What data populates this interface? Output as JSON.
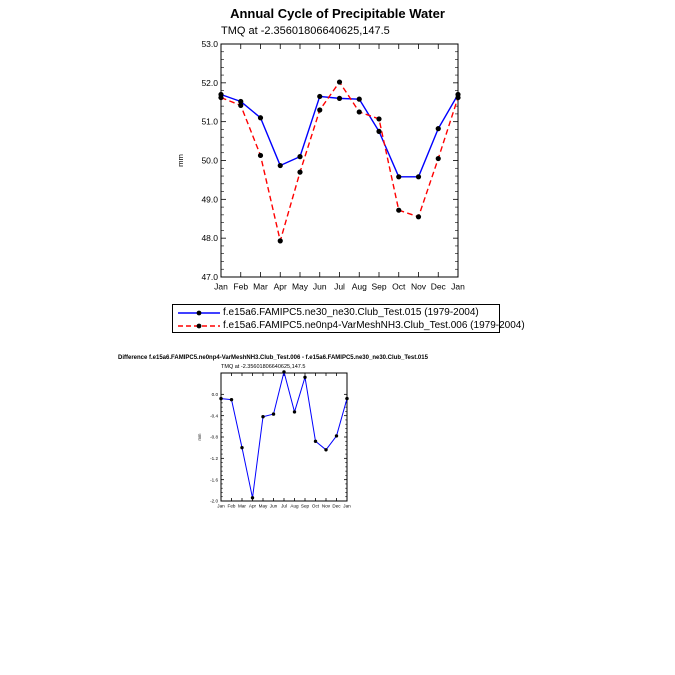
{
  "chart_data": [
    {
      "type": "line",
      "title": "Annual Cycle of Precipitable Water",
      "subtitle": "TMQ at -2.35601806640625,147.5",
      "ylabel": "mm",
      "xlabel": "",
      "categories": [
        "Jan",
        "Feb",
        "Mar",
        "Apr",
        "May",
        "Jun",
        "Jul",
        "Aug",
        "Sep",
        "Oct",
        "Nov",
        "Dec",
        "Jan"
      ],
      "ylim": [
        47.0,
        53.0
      ],
      "yticks": [
        "47.0",
        "48.0",
        "49.0",
        "50.0",
        "51.0",
        "52.0",
        "53.0"
      ],
      "series": [
        {
          "name": "f.e15a6.FAMIPC5.ne30_ne30.Club_Test.015 (1979-2004)",
          "color": "#0000ff",
          "dash": "solid",
          "values": [
            51.7,
            51.52,
            51.1,
            49.87,
            50.1,
            51.65,
            51.6,
            51.58,
            50.75,
            49.58,
            49.58,
            50.82,
            51.7
          ]
        },
        {
          "name": "f.e15a6.FAMIPC5.ne0np4-VarMeshNH3.Club_Test.006 (1979-2004)",
          "color": "#ff0000",
          "dash": "dashed",
          "values": [
            51.62,
            51.42,
            50.13,
            47.93,
            49.7,
            51.3,
            52.02,
            51.25,
            51.07,
            48.72,
            48.55,
            50.05,
            51.62
          ]
        }
      ],
      "legend": "bottom",
      "grid": false
    },
    {
      "type": "line",
      "title": "Difference f.e15a6.FAMIPC5.ne0np4-VarMeshNH3.Club_Test.006 - f.e15a6.FAMIPC5.ne30_ne30.Club_Test.015",
      "subtitle": "TMQ at -2.35601806640625,147.5",
      "ylabel": "mm",
      "xlabel": "",
      "categories": [
        "Jan",
        "Feb",
        "Mar",
        "Apr",
        "May",
        "Jun",
        "Jul",
        "Aug",
        "Sep",
        "Oct",
        "Nov",
        "Dec",
        "Jan"
      ],
      "ylim": [
        -2.0,
        0.4
      ],
      "yticks": [
        "-2.0",
        "-1.6",
        "-1.2",
        "-0.8",
        "-0.4",
        "0.0"
      ],
      "series": [
        {
          "name": "",
          "color": "#0000ff",
          "dash": "solid",
          "values": [
            -0.08,
            -0.1,
            -1.0,
            -1.94,
            -0.42,
            -0.37,
            0.42,
            -0.33,
            0.32,
            -0.88,
            -1.04,
            -0.78,
            -0.08
          ]
        }
      ],
      "grid": false
    }
  ]
}
